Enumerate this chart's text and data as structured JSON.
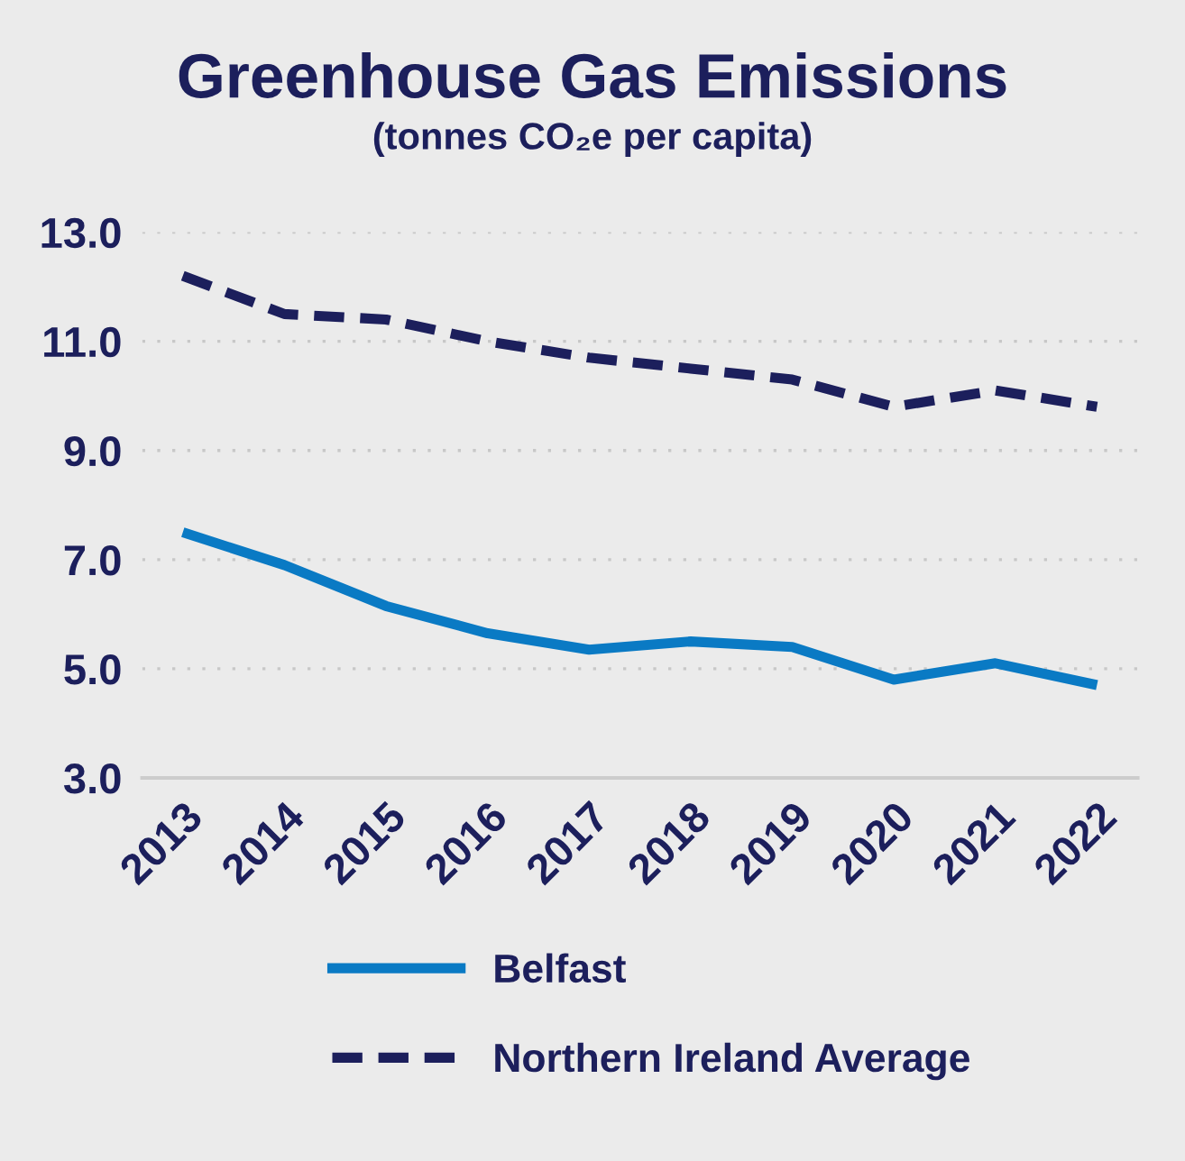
{
  "chart_data": {
    "type": "line",
    "title": "Greenhouse Gas Emissions",
    "subtitle": "(tonnes CO₂e per capita)",
    "categories": [
      "2013",
      "2014",
      "2015",
      "2016",
      "2017",
      "2018",
      "2019",
      "2020",
      "2021",
      "2022"
    ],
    "series": [
      {
        "name": "Belfast",
        "color": "#0a7ac4",
        "line_style": "solid",
        "values": [
          7.5,
          6.9,
          6.15,
          5.65,
          5.35,
          5.5,
          5.4,
          4.8,
          5.1,
          4.7
        ]
      },
      {
        "name": "Northern Ireland Average",
        "color": "#1c1f5c",
        "line_style": "dashed",
        "values": [
          12.2,
          11.5,
          11.4,
          11.0,
          10.7,
          10.5,
          10.3,
          9.8,
          10.1,
          9.8
        ]
      }
    ],
    "ylim": [
      3.0,
      13.0
    ],
    "yticks": [
      {
        "value": 3,
        "label": "3.0"
      },
      {
        "value": 5,
        "label": "5.0"
      },
      {
        "value": 7,
        "label": "7.0"
      },
      {
        "value": 9,
        "label": "9.0"
      },
      {
        "value": 11,
        "label": "11.0"
      },
      {
        "value": 13,
        "label": "13.0"
      }
    ],
    "grid": "y",
    "legend": "bottom",
    "marker": "none"
  }
}
